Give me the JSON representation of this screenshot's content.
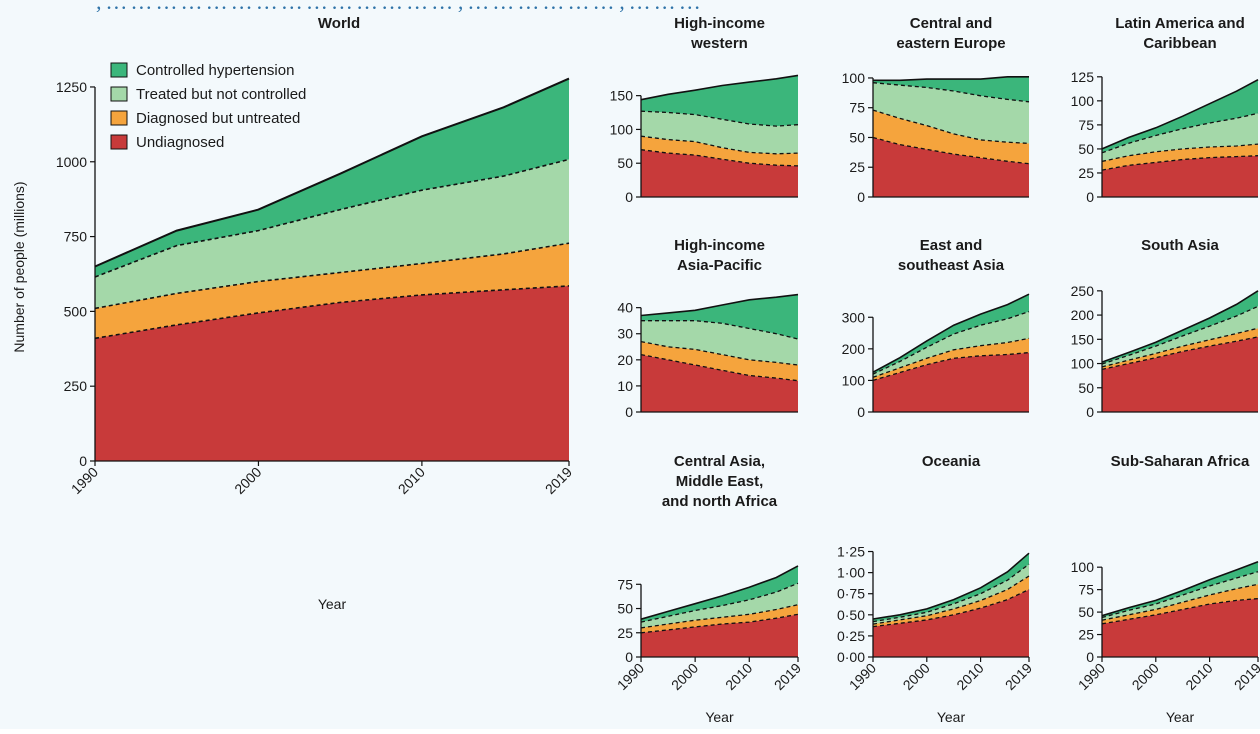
{
  "page": {
    "top_partial_text": ", … … … … … … … … … … … … … … , … … … … … … , … … …"
  },
  "colors": {
    "controlled": "#3bb67b",
    "treated": "#a4d8a9",
    "diagnosed": "#f5a43d",
    "undiagnosed": "#c83a3a",
    "background": "#f3f9fc"
  },
  "legend": [
    "Controlled hypertension",
    "Treated but not controlled",
    "Diagnosed but untreated",
    "Undiagnosed"
  ],
  "chart_data": [
    {
      "type": "area",
      "title": "World",
      "xlabel": "Year",
      "ylabel": "Number of people (millions)",
      "x": [
        1990,
        1995,
        2000,
        2005,
        2010,
        2015,
        2019
      ],
      "ylim": [
        0,
        1300
      ],
      "yticks": [
        0,
        250,
        500,
        750,
        1000,
        1250
      ],
      "ytick_labels": [
        "0",
        "250",
        "500",
        "750",
        "1000",
        "1250"
      ],
      "xticks": [
        1990,
        2000,
        2010,
        2019
      ],
      "series": [
        {
          "name": "Undiagnosed",
          "values": [
            410,
            455,
            495,
            530,
            555,
            572,
            585
          ]
        },
        {
          "name": "Diagnosed but untreated",
          "values": [
            100,
            105,
            105,
            100,
            105,
            120,
            143
          ]
        },
        {
          "name": "Treated but not controlled",
          "values": [
            105,
            160,
            170,
            210,
            245,
            260,
            280
          ]
        },
        {
          "name": "Controlled hypertension",
          "values": [
            35,
            50,
            70,
            120,
            180,
            230,
            270
          ]
        }
      ]
    },
    {
      "type": "area",
      "title": "High-income western",
      "x": [
        1990,
        1995,
        2000,
        2005,
        2010,
        2015,
        2019
      ],
      "ylim": [
        0,
        185
      ],
      "yticks": [
        0,
        50,
        100,
        150
      ],
      "ytick_labels": [
        "0",
        "50",
        "100",
        "150"
      ],
      "series": [
        {
          "name": "Undiagnosed",
          "values": [
            70,
            65,
            62,
            56,
            50,
            47,
            46
          ]
        },
        {
          "name": "Diagnosed but untreated",
          "values": [
            20,
            20,
            20,
            17,
            16,
            17,
            19
          ]
        },
        {
          "name": "Treated but not controlled",
          "values": [
            37,
            40,
            40,
            42,
            42,
            41,
            42
          ]
        },
        {
          "name": "Controlled hypertension",
          "values": [
            17,
            27,
            36,
            50,
            62,
            70,
            73
          ]
        }
      ]
    },
    {
      "type": "area",
      "title": "Central and eastern Europe",
      "x": [
        1990,
        1995,
        2000,
        2005,
        2010,
        2015,
        2019
      ],
      "ylim": [
        0,
        105
      ],
      "yticks": [
        0,
        25,
        50,
        75,
        100
      ],
      "ytick_labels": [
        "0",
        "25",
        "50",
        "75",
        "100"
      ],
      "series": [
        {
          "name": "Undiagnosed",
          "values": [
            50,
            44,
            40,
            36,
            33,
            30,
            28
          ]
        },
        {
          "name": "Diagnosed but untreated",
          "values": [
            23,
            22,
            20,
            17,
            15,
            16,
            17
          ]
        },
        {
          "name": "Treated but not controlled",
          "values": [
            23,
            28,
            32,
            36,
            37,
            36,
            35
          ]
        },
        {
          "name": "Controlled hypertension",
          "values": [
            2,
            4,
            7,
            10,
            14,
            19,
            21
          ]
        }
      ]
    },
    {
      "type": "area",
      "title": "Latin America and Caribbean",
      "x": [
        1990,
        1995,
        2000,
        2005,
        2010,
        2015,
        2019
      ],
      "ylim": [
        0,
        130
      ],
      "yticks": [
        0,
        25,
        50,
        75,
        100,
        125
      ],
      "ytick_labels": [
        "0",
        "25",
        "50",
        "75",
        "100",
        "125"
      ],
      "series": [
        {
          "name": "Undiagnosed",
          "values": [
            28,
            33,
            36,
            39,
            41,
            42,
            43
          ]
        },
        {
          "name": "Diagnosed but untreated",
          "values": [
            9,
            10,
            11,
            11,
            11,
            11,
            12
          ]
        },
        {
          "name": "Treated but not controlled",
          "values": [
            9,
            13,
            17,
            21,
            25,
            29,
            32
          ]
        },
        {
          "name": "Controlled hypertension",
          "values": [
            4,
            6,
            8,
            13,
            20,
            28,
            35
          ]
        }
      ]
    },
    {
      "type": "area",
      "title": "High-income Asia-Pacific",
      "x": [
        1990,
        1995,
        2000,
        2005,
        2010,
        2015,
        2019
      ],
      "ylim": [
        0,
        46
      ],
      "yticks": [
        0,
        10,
        20,
        30,
        40
      ],
      "ytick_labels": [
        "0",
        "10",
        "20",
        "30",
        "40"
      ],
      "series": [
        {
          "name": "Undiagnosed",
          "values": [
            22,
            20,
            18,
            16,
            14,
            13,
            12
          ]
        },
        {
          "name": "Diagnosed but untreated",
          "values": [
            5,
            5,
            6,
            6,
            6,
            6,
            6
          ]
        },
        {
          "name": "Treated but not controlled",
          "values": [
            8,
            10,
            11,
            12,
            12,
            11,
            10
          ]
        },
        {
          "name": "Controlled hypertension",
          "values": [
            2,
            3,
            4,
            7,
            11,
            14,
            17
          ]
        }
      ]
    },
    {
      "type": "area",
      "title": "East and southeast Asia",
      "x": [
        1990,
        1995,
        2000,
        2005,
        2010,
        2015,
        2019
      ],
      "ylim": [
        0,
        380
      ],
      "yticks": [
        0,
        100,
        200,
        300
      ],
      "ytick_labels": [
        "0",
        "100",
        "200",
        "300"
      ],
      "series": [
        {
          "name": "Undiagnosed",
          "values": [
            100,
            125,
            150,
            170,
            178,
            182,
            188
          ]
        },
        {
          "name": "Diagnosed but untreated",
          "values": [
            10,
            15,
            20,
            27,
            32,
            38,
            45
          ]
        },
        {
          "name": "Treated but not controlled",
          "values": [
            10,
            20,
            35,
            50,
            65,
            75,
            85
          ]
        },
        {
          "name": "Controlled hypertension",
          "values": [
            6,
            12,
            20,
            28,
            35,
            45,
            55
          ]
        }
      ]
    },
    {
      "type": "area",
      "title": "South Asia",
      "x": [
        1990,
        1995,
        2000,
        2005,
        2010,
        2015,
        2019
      ],
      "ylim": [
        0,
        260
      ],
      "yticks": [
        0,
        50,
        100,
        150,
        200,
        250
      ],
      "ytick_labels": [
        "0",
        "50",
        "100",
        "150",
        "200",
        "250"
      ],
      "series": [
        {
          "name": "Undiagnosed",
          "values": [
            88,
            100,
            112,
            125,
            136,
            146,
            155
          ]
        },
        {
          "name": "Diagnosed but untreated",
          "values": [
            5,
            7,
            9,
            11,
            13,
            16,
            18
          ]
        },
        {
          "name": "Treated but not controlled",
          "values": [
            6,
            10,
            15,
            21,
            28,
            36,
            45
          ]
        },
        {
          "name": "Controlled hypertension",
          "values": [
            4,
            6,
            8,
            12,
            17,
            24,
            32
          ]
        }
      ]
    },
    {
      "type": "area",
      "title": "Central Asia, Middle East, and north Africa",
      "x": [
        1990,
        1995,
        2000,
        2005,
        2010,
        2015,
        2019
      ],
      "ylim": [
        0,
        98
      ],
      "yticks": [
        0,
        25,
        50,
        75
      ],
      "ytick_labels": [
        "0",
        "25",
        "50",
        "75"
      ],
      "series": [
        {
          "name": "Undiagnosed",
          "values": [
            25,
            28,
            31,
            34,
            36,
            40,
            44
          ]
        },
        {
          "name": "Diagnosed but untreated",
          "values": [
            5,
            6,
            7,
            7,
            8,
            9,
            10
          ]
        },
        {
          "name": "Treated but not controlled",
          "values": [
            6,
            8,
            10,
            12,
            15,
            18,
            22
          ]
        },
        {
          "name": "Controlled hypertension",
          "values": [
            3,
            5,
            7,
            10,
            13,
            15,
            18
          ]
        }
      ]
    },
    {
      "type": "area",
      "title": "Oceania",
      "x": [
        1990,
        1995,
        2000,
        2005,
        2010,
        2015,
        2019
      ],
      "ylim": [
        0,
        1.28
      ],
      "yticks": [
        0,
        0.25,
        0.5,
        0.75,
        1.0,
        1.25
      ],
      "ytick_labels": [
        "0·00",
        "0·25",
        "0·50",
        "0·75",
        "1·00",
        "1·25"
      ],
      "series": [
        {
          "name": "Undiagnosed",
          "values": [
            0.36,
            0.4,
            0.44,
            0.5,
            0.58,
            0.68,
            0.8
          ]
        },
        {
          "name": "Diagnosed but untreated",
          "values": [
            0.03,
            0.04,
            0.05,
            0.07,
            0.09,
            0.12,
            0.16
          ]
        },
        {
          "name": "Treated but not controlled",
          "values": [
            0.03,
            0.03,
            0.04,
            0.06,
            0.08,
            0.11,
            0.14
          ]
        },
        {
          "name": "Controlled hypertension",
          "values": [
            0.03,
            0.03,
            0.04,
            0.05,
            0.07,
            0.1,
            0.13
          ]
        }
      ]
    },
    {
      "type": "area",
      "title": "Sub-Saharan Africa",
      "x": [
        1990,
        1995,
        2000,
        2005,
        2010,
        2015,
        2019
      ],
      "ylim": [
        0,
        108
      ],
      "yticks": [
        0,
        25,
        50,
        75,
        100
      ],
      "ytick_labels": [
        "0",
        "25",
        "50",
        "75",
        "100"
      ],
      "series": [
        {
          "name": "Undiagnosed",
          "values": [
            37,
            42,
            47,
            53,
            59,
            63,
            65
          ]
        },
        {
          "name": "Diagnosed but untreated",
          "values": [
            4,
            5,
            6,
            8,
            10,
            13,
            16
          ]
        },
        {
          "name": "Treated but not controlled",
          "values": [
            3,
            5,
            6,
            8,
            10,
            12,
            14
          ]
        },
        {
          "name": "Controlled hypertension",
          "values": [
            2,
            3,
            4,
            5,
            7,
            9,
            11
          ]
        }
      ]
    }
  ],
  "panel_titles": [
    [
      "World"
    ],
    [
      "High-income",
      "western"
    ],
    [
      "Central and",
      "eastern Europe"
    ],
    [
      "Latin America and",
      "Caribbean"
    ],
    [
      "High-income",
      "Asia-Pacific"
    ],
    [
      "East and",
      "southeast Asia"
    ],
    [
      "South Asia"
    ],
    [
      "Central Asia,",
      "Middle East,",
      "and north Africa"
    ],
    [
      "Oceania"
    ],
    [
      "Sub-Saharan Africa"
    ]
  ],
  "x_tick_labels": [
    "1990",
    "2000",
    "2010",
    "2019"
  ],
  "x_axis_label": "Year",
  "y_axis_label": "Number of people (millions)"
}
